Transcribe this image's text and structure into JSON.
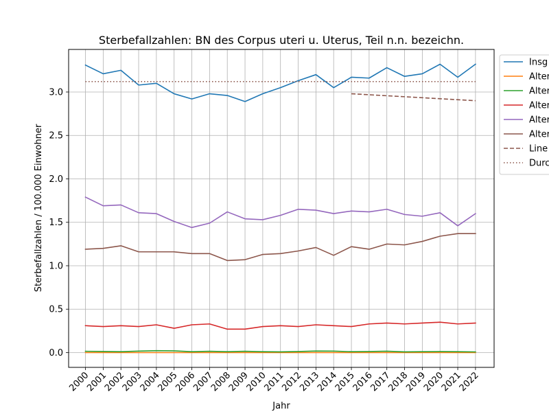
{
  "chart_data": {
    "type": "line",
    "title": "Sterbefallzahlen: BN des Corpus uteri u. Uterus, Teil n.n. bezeichn.",
    "xlabel": "Jahr",
    "ylabel": "Sterbefallzahlen / 100.000 Einwohner",
    "x": [
      2000,
      2001,
      2002,
      2003,
      2004,
      2005,
      2006,
      2007,
      2008,
      2009,
      2010,
      2011,
      2012,
      2013,
      2014,
      2015,
      2016,
      2017,
      2018,
      2019,
      2020,
      2021,
      2022
    ],
    "x_tick_labels": [
      "2000",
      "2001",
      "2002",
      "2003",
      "2004",
      "2005",
      "2006",
      "2007",
      "2008",
      "2009",
      "2010",
      "2011",
      "2012",
      "2013",
      "2014",
      "2015",
      "2016",
      "2017",
      "2018",
      "2019",
      "2020",
      "2021",
      "2022"
    ],
    "y_ticks": [
      0.0,
      0.5,
      1.0,
      1.5,
      2.0,
      2.5,
      3.0
    ],
    "y_tick_labels": [
      "0.0",
      "0.5",
      "1.0",
      "1.5",
      "2.0",
      "2.5",
      "3.0"
    ],
    "xlim": [
      1999.05,
      2023.05
    ],
    "ylim": [
      -0.17,
      3.49
    ],
    "grid": true,
    "legend_position": "outside-top-right",
    "series": [
      {
        "name": "Insg",
        "color": "#1f77b4",
        "dash": "solid",
        "values": [
          3.31,
          3.21,
          3.25,
          3.08,
          3.1,
          2.98,
          2.92,
          2.98,
          2.96,
          2.89,
          2.98,
          3.05,
          3.13,
          3.2,
          3.05,
          3.17,
          3.16,
          3.28,
          3.18,
          3.21,
          3.32,
          3.17,
          3.32
        ]
      },
      {
        "name": "Alter",
        "color": "#ff7f0e",
        "dash": "solid",
        "values": [
          0.0,
          0.0,
          0.0,
          0.0,
          0.0,
          0.0,
          0.0,
          0.0,
          0.0,
          0.0,
          0.0,
          0.0,
          0.0,
          0.0,
          0.0,
          0.0,
          0.0,
          0.0,
          0.0,
          0.0,
          0.0,
          0.0,
          0.0
        ]
      },
      {
        "name": "Alter",
        "color": "#2ca02c",
        "dash": "solid",
        "values": [
          0.015,
          0.013,
          0.01,
          0.017,
          0.022,
          0.02,
          0.01,
          0.015,
          0.01,
          0.015,
          0.01,
          0.008,
          0.012,
          0.018,
          0.017,
          0.01,
          0.012,
          0.016,
          0.008,
          0.01,
          0.012,
          0.01,
          0.008
        ]
      },
      {
        "name": "Alter",
        "color": "#d62728",
        "dash": "solid",
        "values": [
          0.31,
          0.3,
          0.31,
          0.3,
          0.32,
          0.28,
          0.32,
          0.33,
          0.27,
          0.27,
          0.3,
          0.31,
          0.3,
          0.32,
          0.31,
          0.3,
          0.33,
          0.34,
          0.33,
          0.34,
          0.35,
          0.33,
          0.34
        ]
      },
      {
        "name": "Alter",
        "color": "#9467bd",
        "dash": "solid",
        "values": [
          1.79,
          1.69,
          1.7,
          1.61,
          1.6,
          1.51,
          1.44,
          1.49,
          1.62,
          1.54,
          1.53,
          1.58,
          1.65,
          1.64,
          1.6,
          1.63,
          1.62,
          1.65,
          1.59,
          1.57,
          1.61,
          1.46,
          1.6
        ]
      },
      {
        "name": "Alter",
        "color": "#8c564b",
        "dash": "solid",
        "values": [
          1.19,
          1.2,
          1.23,
          1.16,
          1.16,
          1.16,
          1.14,
          1.14,
          1.06,
          1.07,
          1.13,
          1.14,
          1.17,
          1.21,
          1.12,
          1.22,
          1.19,
          1.25,
          1.24,
          1.28,
          1.34,
          1.37,
          1.37
        ]
      },
      {
        "name": "Line",
        "color": "#8c564b",
        "dash": "dashed",
        "x": [
          2015,
          2022
        ],
        "values": [
          2.98,
          2.9
        ]
      },
      {
        "name": "Durc",
        "color": "#8c564b",
        "dash": "dotted",
        "x": [
          2000,
          2022
        ],
        "values": [
          3.12,
          3.12
        ]
      }
    ]
  }
}
